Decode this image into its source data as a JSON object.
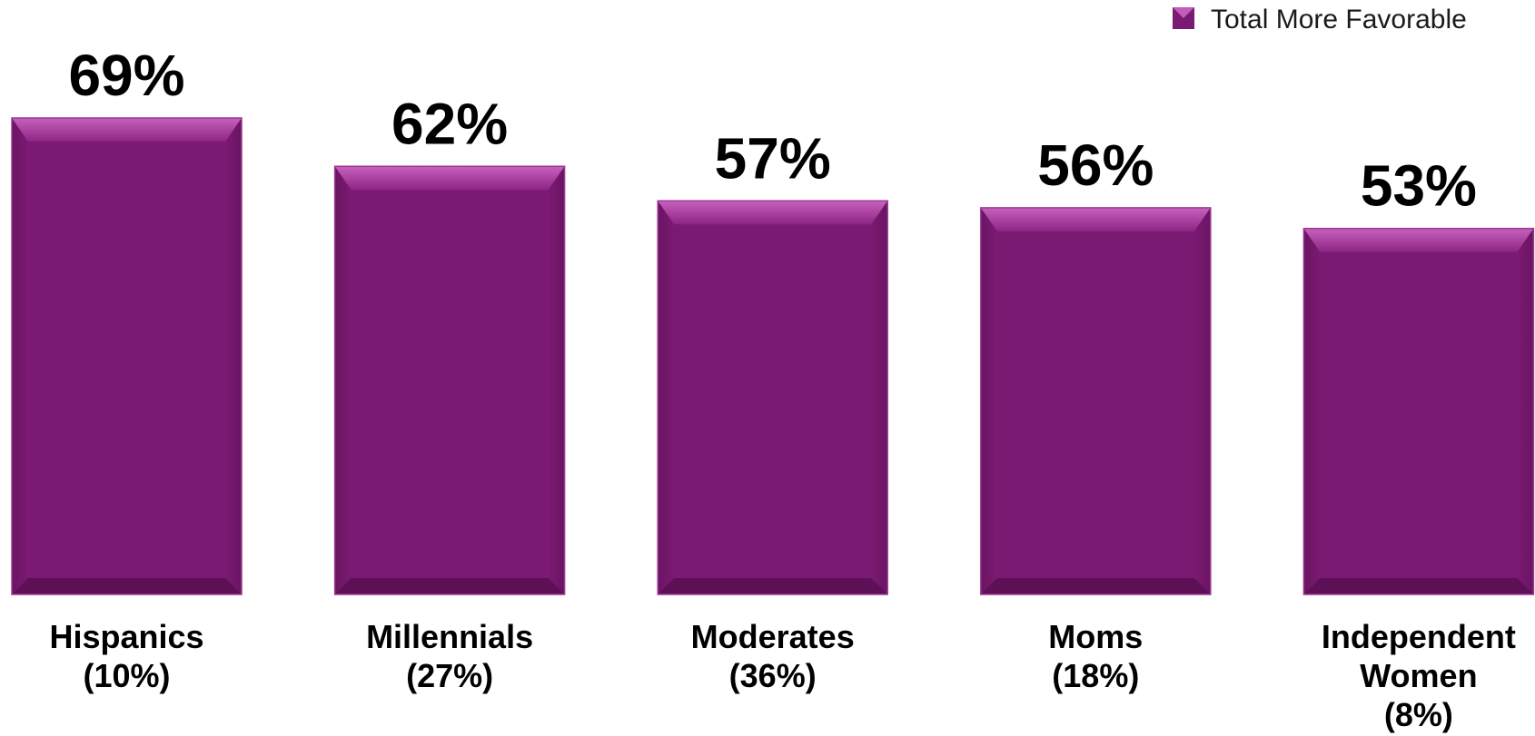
{
  "chart_data": {
    "type": "bar",
    "categories": [
      [
        "Hispanics",
        "(10%)"
      ],
      [
        "Millennials",
        "(27%)"
      ],
      [
        "Moderates",
        "(36%)"
      ],
      [
        "Moms",
        "(18%)"
      ],
      [
        "Independent",
        "Women",
        "(8%)"
      ]
    ],
    "series": [
      {
        "name": "Total More Favorable",
        "values": [
          69,
          62,
          57,
          56,
          53
        ],
        "color": "#7b1a72"
      }
    ],
    "value_labels": [
      "69%",
      "62%",
      "57%",
      "56%",
      "53%"
    ],
    "ylim": [
      0,
      69
    ],
    "grid": false,
    "legend_position": "top-right",
    "colors": {
      "bar": "#7b1a72",
      "bar_dark": "#5e1057",
      "bar_light": "#c45cba"
    }
  }
}
